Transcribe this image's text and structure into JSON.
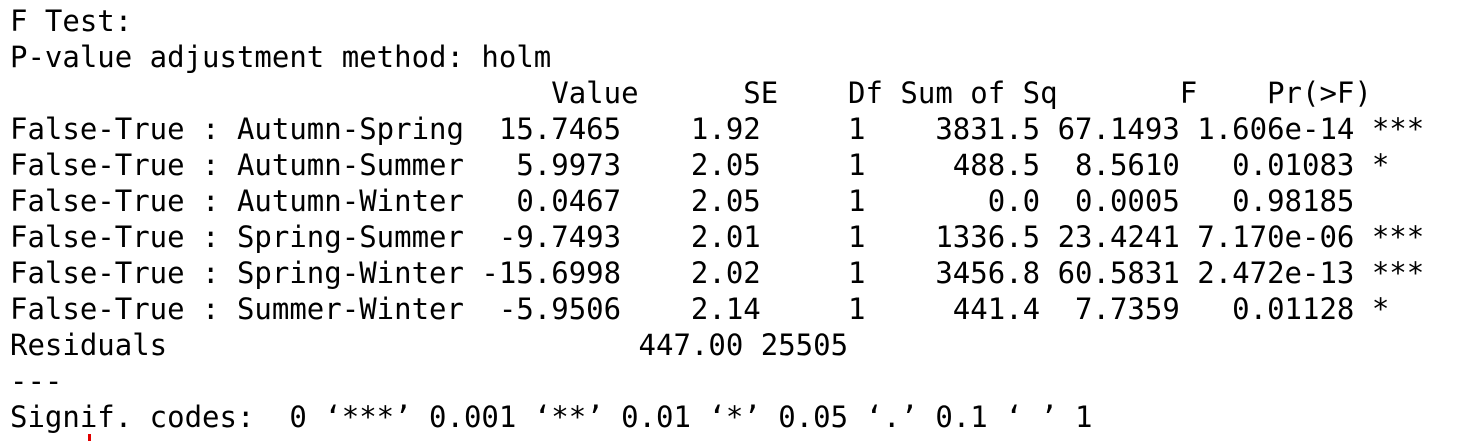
{
  "output": {
    "title": "F Test:",
    "adjustment": "P-value adjustment method: holm",
    "table": {
      "header": "                               Value      SE    Df Sum of Sq       F    Pr(>F)    ",
      "rows": [
        "False-True : Autumn-Spring  15.7465    1.92     1    3831.5 67.1493 1.606e-14 ***",
        "False-True : Autumn-Summer   5.9973    2.05     1     488.5  8.5610   0.01083 *  ",
        "False-True : Autumn-Winter   0.0467    2.05     1       0.0  0.0005   0.98185    ",
        "False-True : Spring-Summer  -9.7493    2.01     1    1336.5 23.4241 7.170e-06 ***",
        "False-True : Spring-Winter -15.6998    2.02     1    3456.8 60.5831 2.472e-13 ***",
        "False-True : Summer-Winter  -5.9506    2.14     1     441.4  7.7359   0.01128 *  ",
        "Residuals                           447.00 25505"
      ]
    },
    "separator": "---",
    "signif_codes": "Signif. codes:  0 ‘***’ 0.001 ‘**’ 0.01 ‘*’ 0.05 ‘.’ 0.1 ‘ ’ 1"
  },
  "colors": {
    "text": "#000000",
    "cursor": "#e00000"
  }
}
